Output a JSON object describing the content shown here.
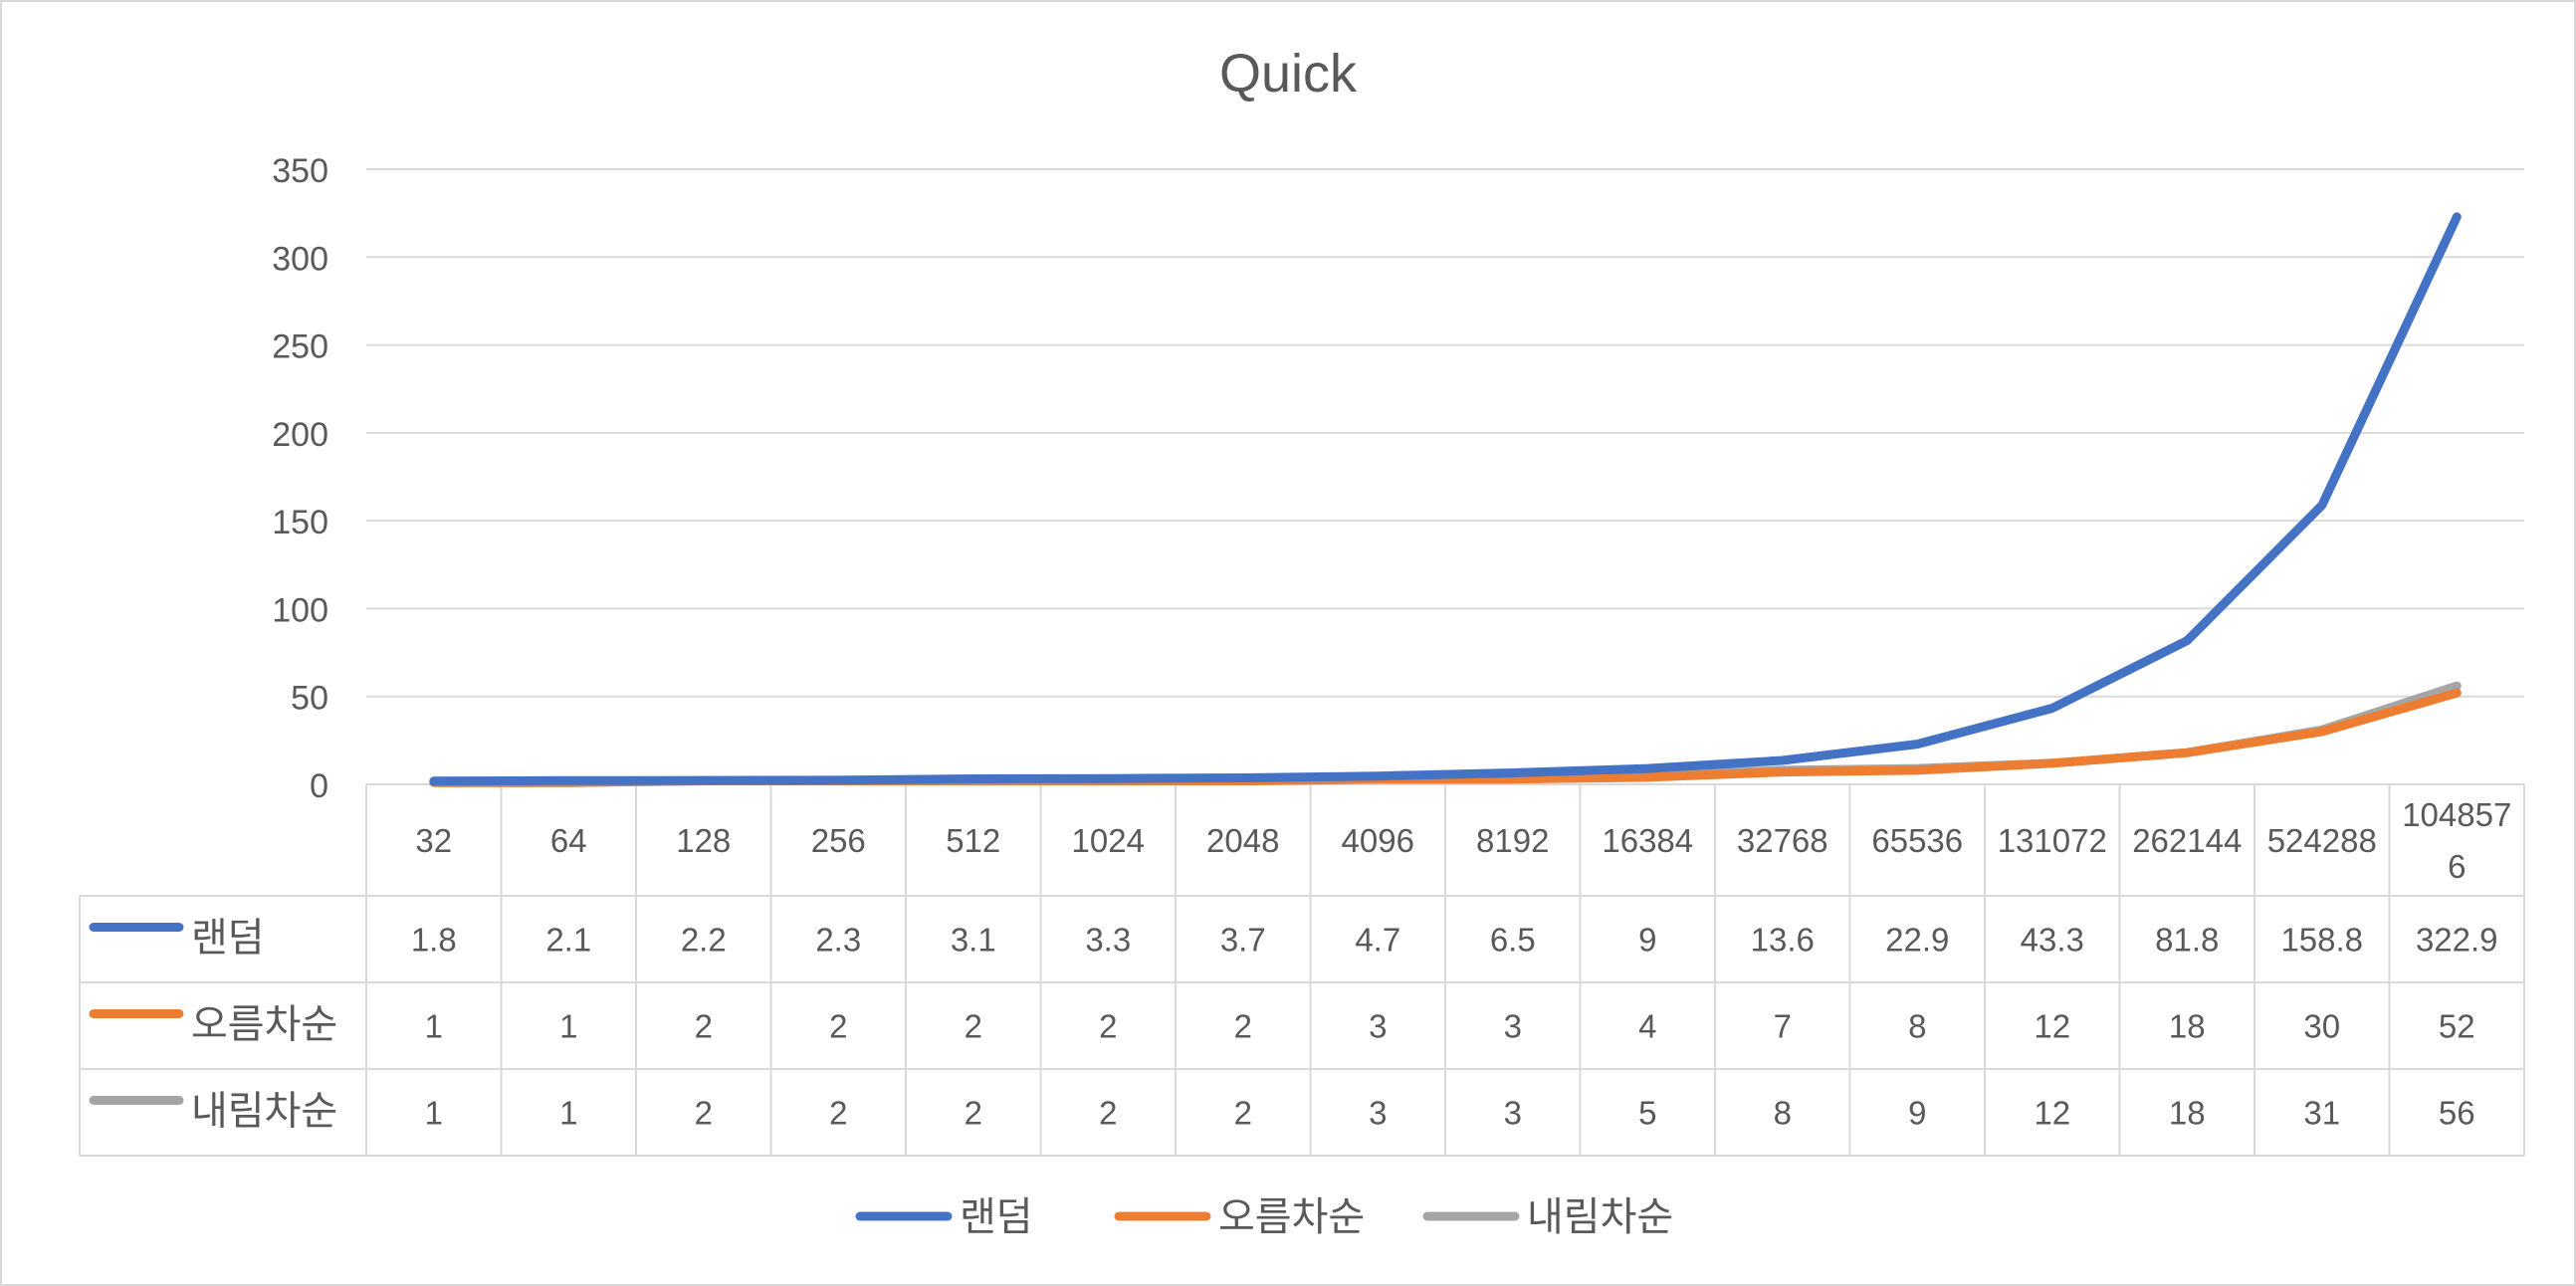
{
  "chart_data": {
    "type": "line",
    "title": "Quick",
    "xlabel": "",
    "ylabel": "",
    "categories": [
      "32",
      "64",
      "128",
      "256",
      "512",
      "1024",
      "2048",
      "4096",
      "8192",
      "16384",
      "32768",
      "65536",
      "131072",
      "262144",
      "524288",
      "1048576"
    ],
    "series": [
      {
        "name": "랜덤",
        "color": "#4472C4",
        "values": [
          1.8,
          2.1,
          2.2,
          2.3,
          3.1,
          3.3,
          3.7,
          4.7,
          6.5,
          9,
          13.6,
          22.9,
          43.3,
          81.8,
          158.8,
          322.9
        ]
      },
      {
        "name": "오름차순",
        "color": "#ED7D31",
        "values": [
          1,
          1,
          2,
          2,
          2,
          2,
          2,
          3,
          3,
          4,
          7,
          8,
          12,
          18,
          30,
          52
        ]
      },
      {
        "name": "내림차순",
        "color": "#A5A5A5",
        "values": [
          1,
          1,
          2,
          2,
          2,
          2,
          2,
          3,
          3,
          5,
          8,
          9,
          12,
          18,
          31,
          56
        ]
      }
    ],
    "ylim": [
      0,
      350
    ],
    "yticks": [
      0,
      50,
      100,
      150,
      200,
      250,
      300,
      350
    ],
    "grid": true,
    "legend": "bottom",
    "data_table": true
  }
}
